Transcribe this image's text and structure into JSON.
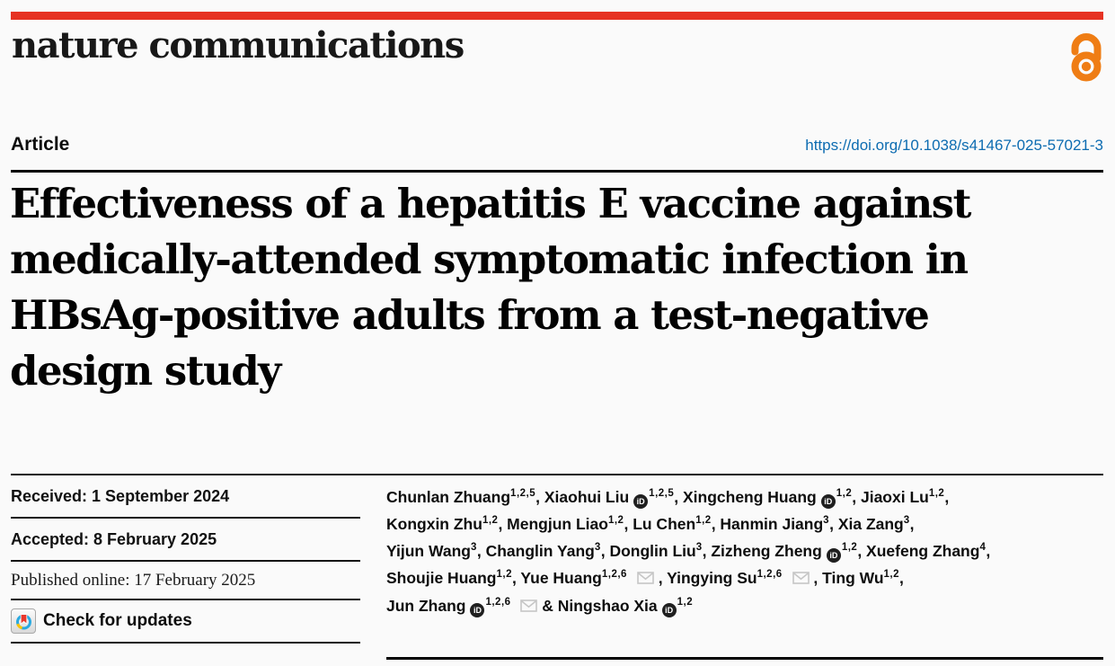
{
  "masthead": {
    "logo": "nature communications",
    "bar_color": "#e63323",
    "open_access_color": "#ef7d14"
  },
  "article": {
    "label": "Article",
    "doi": "https://doi.org/10.1038/s41467-025-57021-3",
    "link_color": "#0d6cb1"
  },
  "title": {
    "lines": [
      "Effectiveness of a hepatitis E vaccine against",
      "medically-attended symptomatic infection in",
      "HBsAg-positive adults from a test-negative",
      "design study"
    ]
  },
  "history": {
    "received": "Received: 1 September 2024",
    "accepted": "Accepted: 8 February 2025",
    "published": "Published online: 17 February 2025",
    "check_updates": "Check for updates"
  },
  "authors": {
    "list": [
      {
        "name": "Chunlan Zhuang",
        "sup": "1,2,5"
      },
      {
        "name": "Xiaohui Liu",
        "orcid": true,
        "sup": "1,2,5"
      },
      {
        "name": "Xingcheng Huang",
        "orcid": true,
        "sup": "1,2"
      },
      {
        "name": "Jiaoxi Lu",
        "sup": "1,2",
        "break_after": true
      },
      {
        "name": "Kongxin Zhu",
        "sup": "1,2"
      },
      {
        "name": "Mengjun Liao",
        "sup": "1,2"
      },
      {
        "name": "Lu Chen",
        "sup": "1,2"
      },
      {
        "name": "Hanmin Jiang",
        "sup": "3"
      },
      {
        "name": "Xia Zang",
        "sup": "3",
        "break_after": true
      },
      {
        "name": "Yijun Wang",
        "sup": "3"
      },
      {
        "name": "Changlin Yang",
        "sup": "3"
      },
      {
        "name": "Donglin Liu",
        "sup": "3"
      },
      {
        "name": "Zizheng Zheng",
        "orcid": true,
        "sup": "1,2"
      },
      {
        "name": "Xuefeng Zhang",
        "sup": "4",
        "break_after": true
      },
      {
        "name": "Shoujie Huang",
        "sup": "1,2"
      },
      {
        "name": "Yue Huang",
        "sup": "1,2,6",
        "email": true
      },
      {
        "name": "Yingying Su",
        "sup": "1,2,6",
        "email": true
      },
      {
        "name": "Ting Wu",
        "sup": "1,2",
        "break_after": true
      },
      {
        "name": "Jun Zhang",
        "orcid": true,
        "sup": "1,2,6",
        "email": true
      },
      {
        "name": "Ningshao Xia",
        "orcid": true,
        "sup": "1,2"
      }
    ]
  },
  "icons": {
    "orcid": "orcid-icon",
    "orcid_glyph": "iD",
    "envelope": "envelope-icon",
    "crossmark": "crossmark-icon",
    "open_access": "open-access-icon",
    "envelope_color": "#c6c6c6"
  }
}
